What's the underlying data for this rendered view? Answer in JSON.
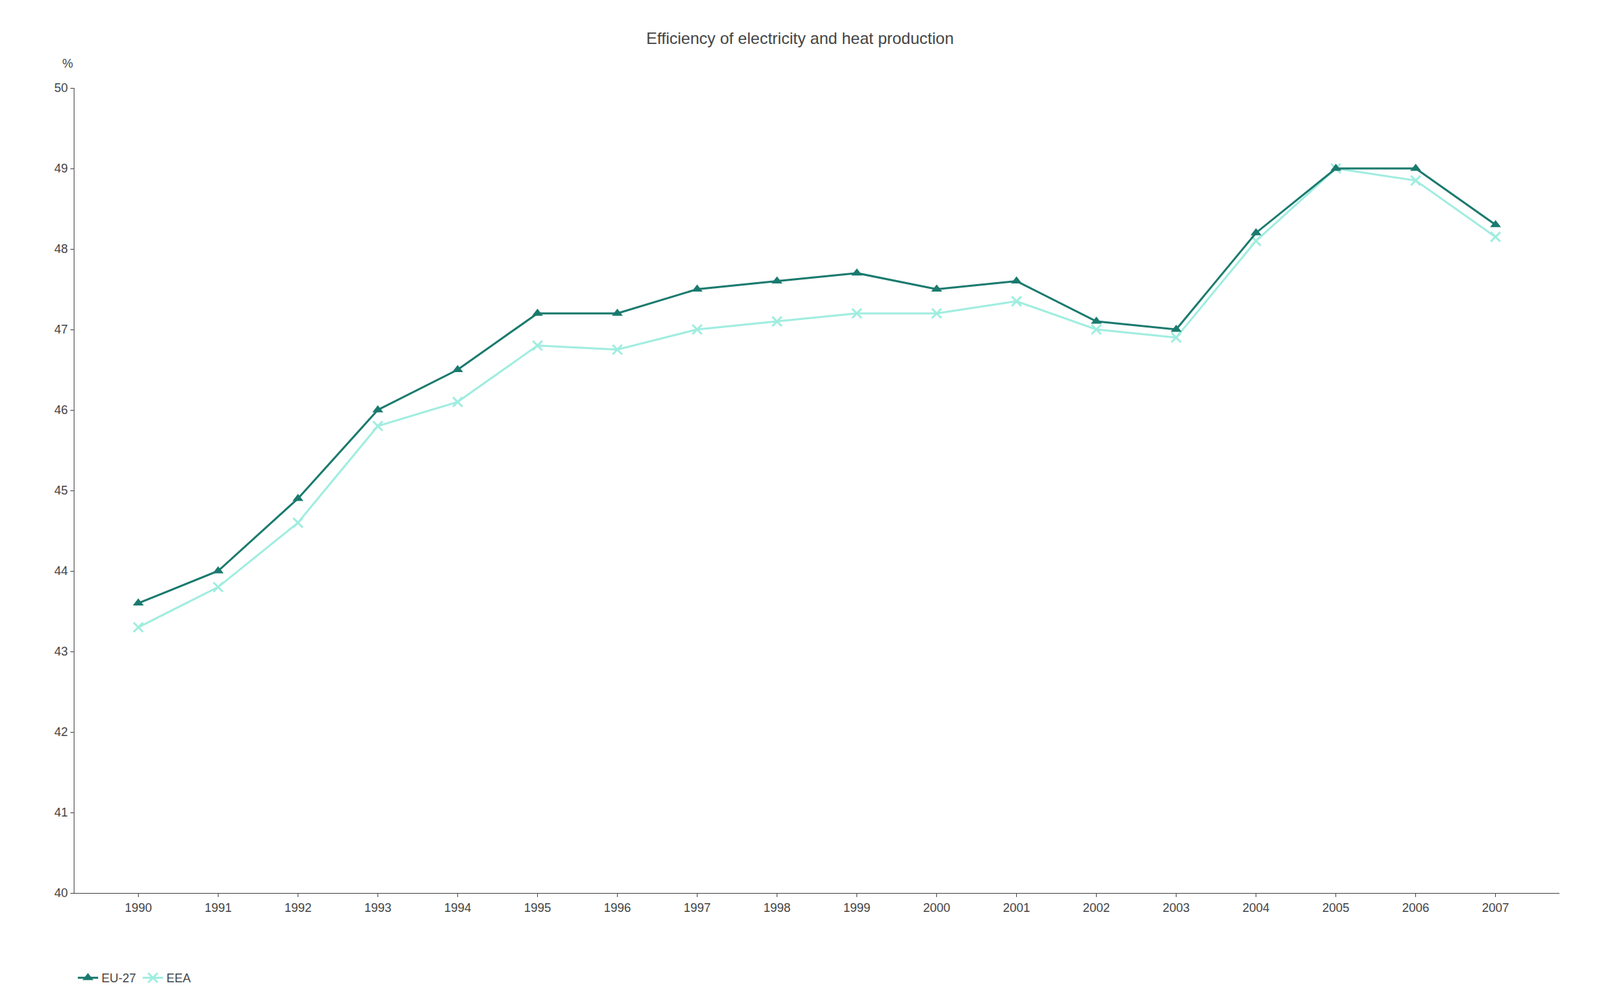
{
  "chart_data": {
    "type": "line",
    "title": "Efficiency of electricity and heat production",
    "ylabel": "%",
    "x": [
      1990,
      1991,
      1992,
      1993,
      1994,
      1995,
      1996,
      1997,
      1998,
      1999,
      2000,
      2001,
      2002,
      2003,
      2004,
      2005,
      2006,
      2007
    ],
    "series": [
      {
        "name": "EU-27",
        "color": "#1a7a6e",
        "marker": "triangle-up",
        "values": [
          43.6,
          44.0,
          44.9,
          46.0,
          46.5,
          47.2,
          47.2,
          47.5,
          47.6,
          47.7,
          47.5,
          47.6,
          47.1,
          47.0,
          48.2,
          49.0,
          49.0,
          48.3
        ]
      },
      {
        "name": "EEA",
        "color": "#a0ede0",
        "marker": "x",
        "values": [
          43.3,
          43.8,
          44.6,
          45.8,
          46.1,
          46.8,
          46.75,
          47.0,
          47.1,
          47.2,
          47.2,
          47.35,
          47.0,
          46.9,
          48.1,
          49.0,
          48.85,
          48.15
        ]
      }
    ],
    "xlim": [
      1989.2,
      2007.8
    ],
    "xticks": [
      1990,
      1991,
      1992,
      1993,
      1994,
      1995,
      1996,
      1997,
      1998,
      1999,
      2000,
      2001,
      2002,
      2003,
      2004,
      2005,
      2006,
      2007
    ],
    "ylim": [
      40,
      50
    ],
    "yticks": [
      40,
      41,
      42,
      43,
      44,
      45,
      46,
      47,
      48,
      49,
      50
    ],
    "grid": false,
    "legend": "bottom"
  }
}
